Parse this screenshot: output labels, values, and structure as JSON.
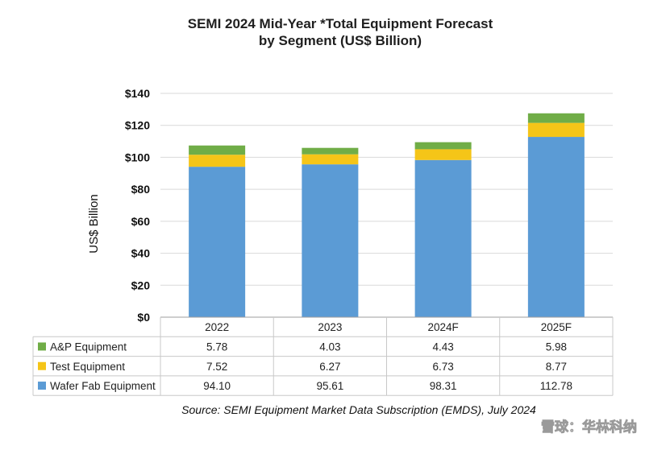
{
  "chart_data": {
    "type": "bar",
    "stacked": true,
    "title_line1": "SEMI 2024 Mid-Year *Total Equipment Forecast",
    "title_line2": "by Segment (US$ Billion)",
    "ylabel": "US$ Billion",
    "ylim": [
      0,
      140
    ],
    "yticks": [
      "$0",
      "$20",
      "$40",
      "$60",
      "$80",
      "$100",
      "$120",
      "$140"
    ],
    "ytick_values": [
      0,
      20,
      40,
      60,
      80,
      100,
      120,
      140
    ],
    "grid": true,
    "categories": [
      "2022",
      "2023",
      "2024F",
      "2025F"
    ],
    "series": [
      {
        "name": "Wafer Fab Equipment",
        "color": "#5b9bd5",
        "values": [
          94.1,
          95.61,
          98.31,
          112.78
        ],
        "labels": [
          "94.10",
          "95.61",
          "98.31",
          "112.78"
        ]
      },
      {
        "name": "Test Equipment",
        "color": "#f5c518",
        "values": [
          7.52,
          6.27,
          6.73,
          8.77
        ],
        "labels": [
          "7.52",
          "6.27",
          "6.73",
          "8.77"
        ]
      },
      {
        "name": "A&P Equipment",
        "color": "#70ad47",
        "values": [
          5.78,
          4.03,
          4.43,
          5.98
        ],
        "labels": [
          "5.78",
          "4.03",
          "4.43",
          "5.98"
        ]
      }
    ],
    "table_row_order": [
      "A&P Equipment",
      "Test Equipment",
      "Wafer Fab Equipment"
    ],
    "source": "Source: SEMI Equipment Market Data Subscription (EMDS), July 2024"
  },
  "watermark": "雪球：华林科纳"
}
